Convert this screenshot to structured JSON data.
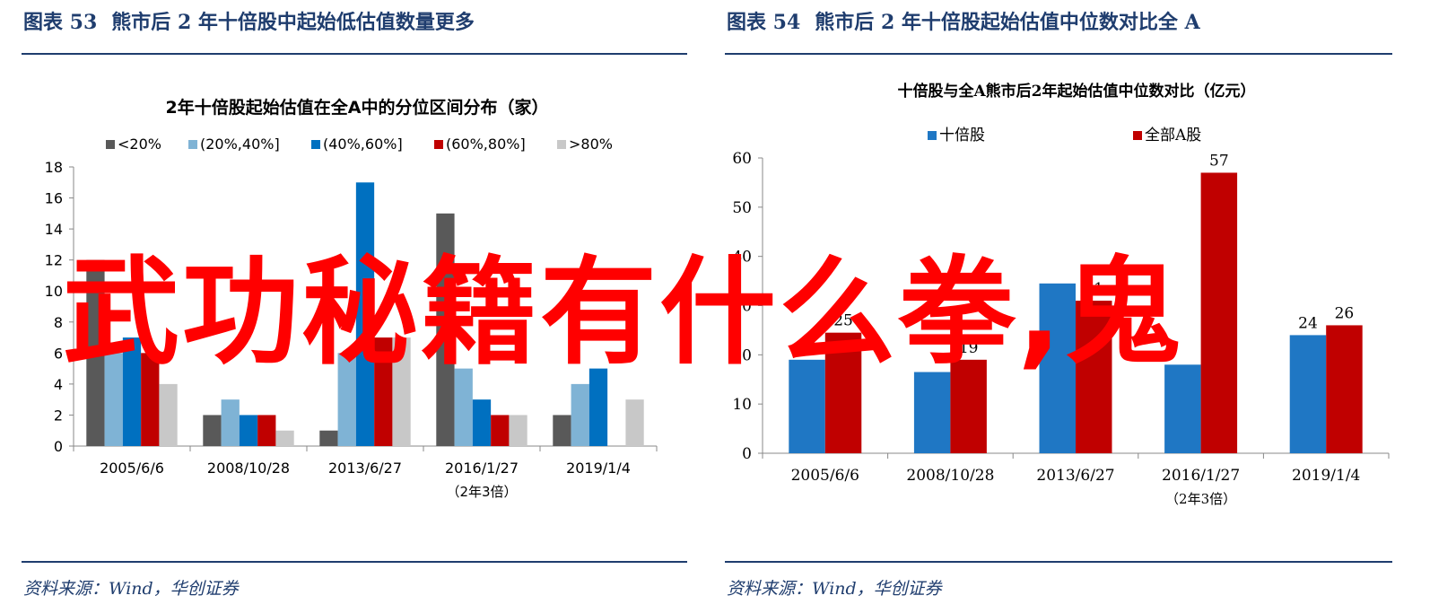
{
  "overlay_text": "武功秘籍有什么拳,鬼",
  "left": {
    "fig_no": "图表 53",
    "fig_title": "熊市后 2 年十倍股中起始低估值数量更多",
    "source": "资料来源：Wind，华创证券"
  },
  "right": {
    "fig_no": "图表 54",
    "fig_title": "熊市后 2 年十倍股起始估值中位数对比全 A",
    "source": "资料来源：Wind，华创证券"
  },
  "chart_data": [
    {
      "type": "bar",
      "title": "2年十倍股起始估值在全A中的分位区间分布（家）",
      "categories": [
        "2005/6/6",
        "2008/10/28",
        "2013/6/27",
        "2016/1/27",
        "2019/1/4"
      ],
      "category_note": {
        "index": 3,
        "text": "（2年3倍）"
      },
      "series": [
        {
          "name": "<20%",
          "color": "#595959",
          "values": [
            12,
            2,
            1,
            15,
            2
          ]
        },
        {
          "name": "(20%,40%]",
          "color": "#7fb3d5",
          "values": [
            6,
            3,
            6,
            5,
            4
          ]
        },
        {
          "name": "(40%,60%]",
          "color": "#0070c0",
          "values": [
            7,
            2,
            17,
            3,
            5
          ]
        },
        {
          "name": "(60%,80%]",
          "color": "#c00000",
          "values": [
            6,
            2,
            7,
            2,
            null
          ]
        },
        {
          "name": ">80%",
          "color": "#c8c8c8",
          "values": [
            4,
            1,
            7,
            2,
            3
          ]
        }
      ],
      "ylim": [
        0,
        18
      ],
      "yticks": [
        0,
        2,
        4,
        6,
        8,
        10,
        12,
        14,
        16,
        18
      ],
      "legend": "top",
      "grid": false
    },
    {
      "type": "bar",
      "title": "十倍股与全A熊市后2年起始估值中位数对比（亿元）",
      "categories": [
        "2005/6/6",
        "2008/10/28",
        "2013/6/27",
        "2016/1/27",
        "2019/1/4"
      ],
      "category_note": {
        "index": 3,
        "text": "（2年3倍）"
      },
      "series": [
        {
          "name": "十倍股",
          "color": "#1f77c4",
          "values": [
            19,
            16.5,
            34.5,
            18,
            24
          ]
        },
        {
          "name": "全部A股",
          "color": "#c00000",
          "values": [
            24.5,
            19,
            31,
            57,
            26
          ]
        }
      ],
      "data_labels": [
        [
          "19",
          "",
          "",
          "",
          "24"
        ],
        [
          "25",
          "19",
          "31",
          "57",
          "26"
        ]
      ],
      "ylim": [
        0,
        60
      ],
      "yticks": [
        0,
        10,
        20,
        30,
        40,
        50,
        60
      ],
      "legend": "top",
      "grid": false
    }
  ]
}
